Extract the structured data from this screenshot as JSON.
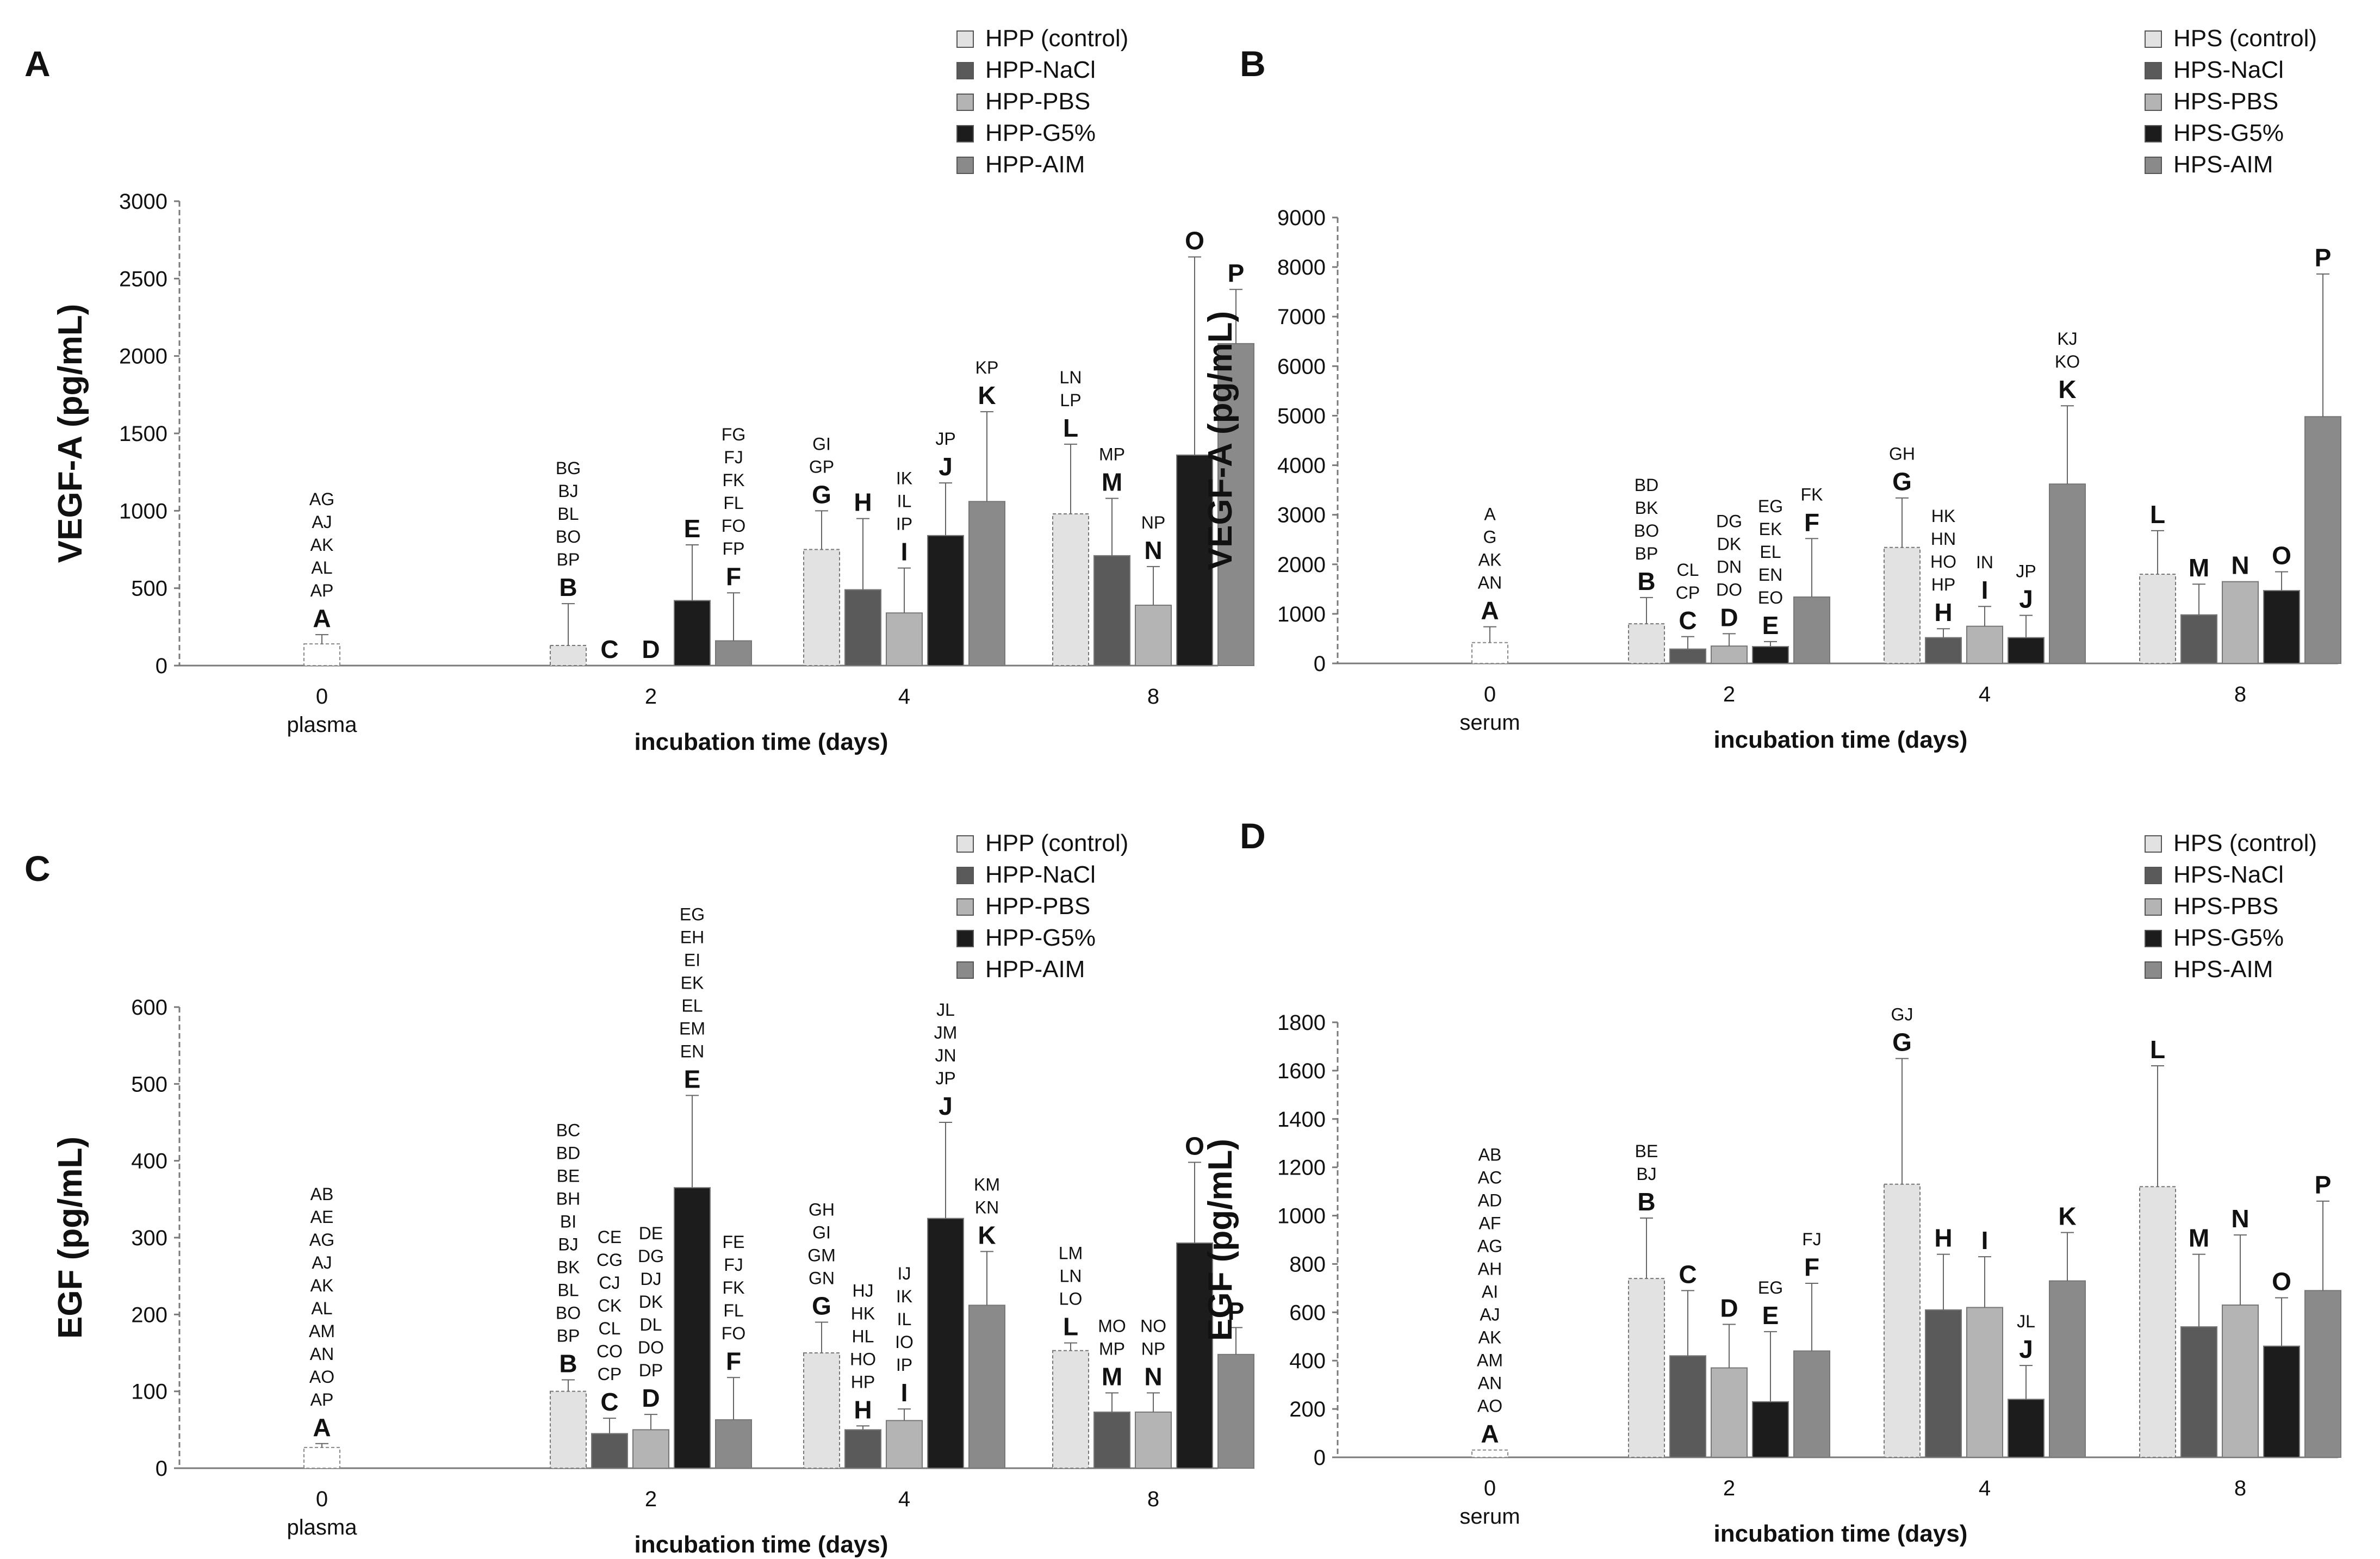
{
  "chart_data": [
    {
      "id": "A",
      "type": "bar",
      "panel_label": "A",
      "ylabel": "VEGF-A (pg/mL)",
      "xlabel": "incubation time (days)",
      "ylim": [
        0,
        3000
      ],
      "yticks": [
        "0",
        "500",
        "1000",
        "1500",
        "2000",
        "2500",
        "3000"
      ],
      "x_categories": [
        "0",
        "2",
        "4",
        "8"
      ],
      "x_sublabel": "plasma",
      "legend": [
        "HPP (control)",
        "HPP-NaCl",
        "HPP-PBS",
        "HPP-G5%",
        "HPP-AIM"
      ],
      "baseline": {
        "value": 140,
        "err": 60,
        "letter": "A",
        "sig": [
          "AG",
          "AJ",
          "AK",
          "AL",
          "AP"
        ]
      },
      "groups": [
        {
          "day": "2",
          "bars": [
            {
              "series": 0,
              "value": 130,
              "err": 270,
              "letter": "B",
              "sig": [
                "BG",
                "BJ",
                "BL",
                "BO",
                "BP"
              ]
            },
            {
              "series": 1,
              "value": 0,
              "err": 0,
              "letter": "C",
              "sig": []
            },
            {
              "series": 2,
              "value": 0,
              "err": 0,
              "letter": "D",
              "sig": []
            },
            {
              "series": 3,
              "value": 420,
              "err": 360,
              "letter": "E",
              "sig": []
            },
            {
              "series": 4,
              "value": 160,
              "err": 310,
              "letter": "F",
              "sig": [
                "FG",
                "FJ",
                "FK",
                "FL",
                "FO",
                "FP"
              ]
            }
          ]
        },
        {
          "day": "4",
          "bars": [
            {
              "series": 0,
              "value": 750,
              "err": 250,
              "letter": "G",
              "sig": [
                "GI",
                "GP"
              ]
            },
            {
              "series": 1,
              "value": 490,
              "err": 460,
              "letter": "H",
              "sig": []
            },
            {
              "series": 2,
              "value": 340,
              "err": 290,
              "letter": "I",
              "sig": [
                "IK",
                "IL",
                "IP"
              ]
            },
            {
              "series": 3,
              "value": 840,
              "err": 340,
              "letter": "J",
              "sig": [
                "JP"
              ]
            },
            {
              "series": 4,
              "value": 1060,
              "err": 580,
              "letter": "K",
              "sig": [
                "KP"
              ]
            }
          ]
        },
        {
          "day": "8",
          "bars": [
            {
              "series": 0,
              "value": 980,
              "err": 450,
              "letter": "L",
              "sig": [
                "LN",
                "LP"
              ]
            },
            {
              "series": 1,
              "value": 710,
              "err": 370,
              "letter": "M",
              "sig": [
                "MP"
              ]
            },
            {
              "series": 2,
              "value": 390,
              "err": 250,
              "letter": "N",
              "sig": [
                "NP"
              ]
            },
            {
              "series": 3,
              "value": 1360,
              "err": 1280,
              "letter": "O",
              "sig": []
            },
            {
              "series": 4,
              "value": 2080,
              "err": 350,
              "letter": "P",
              "sig": []
            }
          ]
        }
      ]
    },
    {
      "id": "B",
      "type": "bar",
      "panel_label": "B",
      "ylabel": "VEGF-A (pg/mL)",
      "xlabel": "incubation time (days)",
      "ylim": [
        0,
        9000
      ],
      "yticks": [
        "0",
        "1000",
        "2000",
        "3000",
        "4000",
        "5000",
        "6000",
        "7000",
        "8000",
        "9000"
      ],
      "x_categories": [
        "0",
        "2",
        "4",
        "8"
      ],
      "x_sublabel": "serum",
      "legend": [
        "HPS (control)",
        "HPS-NaCl",
        "HPS-PBS",
        "HPS-G5%",
        "HPS-AIM"
      ],
      "baseline": {
        "value": 420,
        "err": 320,
        "letter": "A",
        "sig": [
          "A",
          "G",
          "AK",
          "AN"
        ]
      },
      "groups": [
        {
          "day": "2",
          "bars": [
            {
              "series": 0,
              "value": 800,
              "err": 530,
              "letter": "B",
              "sig": [
                "BD",
                "BK",
                "BO",
                "BP"
              ]
            },
            {
              "series": 1,
              "value": 290,
              "err": 250,
              "letter": "C",
              "sig": [
                "CL",
                "CP"
              ]
            },
            {
              "series": 2,
              "value": 350,
              "err": 250,
              "letter": "D",
              "sig": [
                "DG",
                "DK",
                "DN",
                "DO"
              ]
            },
            {
              "series": 3,
              "value": 340,
              "err": 100,
              "letter": "E",
              "sig": [
                "EG",
                "EK",
                "EL",
                "EN",
                "EO"
              ]
            },
            {
              "series": 4,
              "value": 1340,
              "err": 1180,
              "letter": "F",
              "sig": [
                "FK"
              ]
            }
          ]
        },
        {
          "day": "4",
          "bars": [
            {
              "series": 0,
              "value": 2340,
              "err": 1000,
              "letter": "G",
              "sig": [
                "GH"
              ]
            },
            {
              "series": 1,
              "value": 520,
              "err": 180,
              "letter": "H",
              "sig": [
                "HK",
                "HN",
                "HO",
                "HP"
              ]
            },
            {
              "series": 2,
              "value": 750,
              "err": 400,
              "letter": "I",
              "sig": [
                "IN"
              ]
            },
            {
              "series": 3,
              "value": 520,
              "err": 450,
              "letter": "J",
              "sig": [
                "JP"
              ]
            },
            {
              "series": 4,
              "value": 3620,
              "err": 1580,
              "letter": "K",
              "sig": [
                "KJ",
                "KO"
              ]
            }
          ]
        },
        {
          "day": "8",
          "bars": [
            {
              "series": 0,
              "value": 1800,
              "err": 880,
              "letter": "L",
              "sig": []
            },
            {
              "series": 1,
              "value": 980,
              "err": 620,
              "letter": "M",
              "sig": []
            },
            {
              "series": 2,
              "value": 1650,
              "err": 0,
              "letter": "N",
              "sig": []
            },
            {
              "series": 3,
              "value": 1470,
              "err": 380,
              "letter": "O",
              "sig": []
            },
            {
              "series": 4,
              "value": 4980,
              "err": 2880,
              "letter": "P",
              "sig": []
            }
          ]
        }
      ]
    },
    {
      "id": "C",
      "type": "bar",
      "panel_label": "C",
      "ylabel": "EGF (pg/mL)",
      "xlabel": "incubation time (days)",
      "ylim": [
        0,
        600
      ],
      "yticks": [
        "0",
        "100",
        "200",
        "300",
        "400",
        "500",
        "600"
      ],
      "x_categories": [
        "0",
        "2",
        "4",
        "8"
      ],
      "x_sublabel": "plasma",
      "legend": [
        "HPP (control)",
        "HPP-NaCl",
        "HPP-PBS",
        "HPP-G5%",
        "HPP-AIM"
      ],
      "baseline": {
        "value": 27,
        "err": 5,
        "letter": "A",
        "sig": [
          "AB",
          "AE",
          "AG",
          "AJ",
          "AK",
          "AL",
          "AM",
          "AN",
          "AO",
          "AP"
        ]
      },
      "groups": [
        {
          "day": "2",
          "bars": [
            {
              "series": 0,
              "value": 100,
              "err": 15,
              "letter": "B",
              "sig": [
                "BC",
                "BD",
                "BE",
                "BH",
                "BI",
                "BJ",
                "BK",
                "BL",
                "BO",
                "BP"
              ]
            },
            {
              "series": 1,
              "value": 45,
              "err": 20,
              "letter": "C",
              "sig": [
                "CE",
                "CG",
                "CJ",
                "CK",
                "CL",
                "CO",
                "CP"
              ]
            },
            {
              "series": 2,
              "value": 50,
              "err": 20,
              "letter": "D",
              "sig": [
                "DE",
                "DG",
                "DJ",
                "DK",
                "DL",
                "DO",
                "DP"
              ]
            },
            {
              "series": 3,
              "value": 365,
              "err": 120,
              "letter": "E",
              "sig": [
                "EG",
                "EH",
                "EI",
                "EK",
                "EL",
                "EM",
                "EN"
              ]
            },
            {
              "series": 4,
              "value": 63,
              "err": 55,
              "letter": "F",
              "sig": [
                "FE",
                "FJ",
                "FK",
                "FL",
                "FO"
              ]
            }
          ]
        },
        {
          "day": "4",
          "bars": [
            {
              "series": 0,
              "value": 150,
              "err": 40,
              "letter": "G",
              "sig": [
                "GH",
                "GI",
                "GM",
                "GN"
              ]
            },
            {
              "series": 1,
              "value": 50,
              "err": 5,
              "letter": "H",
              "sig": [
                "HJ",
                "HK",
                "HL",
                "HO",
                "HP"
              ]
            },
            {
              "series": 2,
              "value": 62,
              "err": 15,
              "letter": "I",
              "sig": [
                "IJ",
                "IK",
                "IL",
                "IO",
                "IP"
              ]
            },
            {
              "series": 3,
              "value": 325,
              "err": 125,
              "letter": "J",
              "sig": [
                "JL",
                "JM",
                "JN",
                "JP"
              ]
            },
            {
              "series": 4,
              "value": 212,
              "err": 70,
              "letter": "K",
              "sig": [
                "KM",
                "KN"
              ]
            }
          ]
        },
        {
          "day": "8",
          "bars": [
            {
              "series": 0,
              "value": 153,
              "err": 10,
              "letter": "L",
              "sig": [
                "LM",
                "LN",
                "LO"
              ]
            },
            {
              "series": 1,
              "value": 73,
              "err": 25,
              "letter": "M",
              "sig": [
                "MO",
                "MP"
              ]
            },
            {
              "series": 2,
              "value": 73,
              "err": 25,
              "letter": "N",
              "sig": [
                "NO",
                "NP"
              ]
            },
            {
              "series": 3,
              "value": 293,
              "err": 105,
              "letter": "O",
              "sig": []
            },
            {
              "series": 4,
              "value": 148,
              "err": 35,
              "letter": "P",
              "sig": []
            }
          ]
        }
      ]
    },
    {
      "id": "D",
      "type": "bar",
      "panel_label": "D",
      "ylabel": "EGF (pg/mL)",
      "xlabel": "incubation time (days)",
      "ylim": [
        0,
        1800
      ],
      "yticks": [
        "0",
        "200",
        "400",
        "600",
        "800",
        "1000",
        "1200",
        "1400",
        "1600",
        "1800"
      ],
      "x_categories": [
        "0",
        "2",
        "4",
        "8"
      ],
      "x_sublabel": "serum",
      "legend": [
        "HPS (control)",
        "HPS-NaCl",
        "HPS-PBS",
        "HPS-G5%",
        "HPS-AIM"
      ],
      "baseline": {
        "value": 30,
        "err": 0,
        "letter": "A",
        "sig": [
          "AB",
          "AC",
          "AD",
          "AF",
          "AG",
          "AH",
          "AI",
          "AJ",
          "AK",
          "AM",
          "AN",
          "AO"
        ]
      },
      "groups": [
        {
          "day": "2",
          "bars": [
            {
              "series": 0,
              "value": 740,
              "err": 250,
              "letter": "B",
              "sig": [
                "BE",
                "BJ"
              ]
            },
            {
              "series": 1,
              "value": 420,
              "err": 270,
              "letter": "C",
              "sig": []
            },
            {
              "series": 2,
              "value": 370,
              "err": 180,
              "letter": "D",
              "sig": []
            },
            {
              "series": 3,
              "value": 230,
              "err": 290,
              "letter": "E",
              "sig": [
                "EG"
              ]
            },
            {
              "series": 4,
              "value": 440,
              "err": 280,
              "letter": "F",
              "sig": [
                "FJ"
              ]
            }
          ]
        },
        {
          "day": "4",
          "bars": [
            {
              "series": 0,
              "value": 1130,
              "err": 520,
              "letter": "G",
              "sig": [
                "GJ"
              ]
            },
            {
              "series": 1,
              "value": 610,
              "err": 230,
              "letter": "H",
              "sig": []
            },
            {
              "series": 2,
              "value": 620,
              "err": 210,
              "letter": "I",
              "sig": []
            },
            {
              "series": 3,
              "value": 240,
              "err": 140,
              "letter": "J",
              "sig": [
                "JL"
              ]
            },
            {
              "series": 4,
              "value": 730,
              "err": 200,
              "letter": "K",
              "sig": []
            }
          ]
        },
        {
          "day": "8",
          "bars": [
            {
              "series": 0,
              "value": 1120,
              "err": 500,
              "letter": "L",
              "sig": []
            },
            {
              "series": 1,
              "value": 540,
              "err": 300,
              "letter": "M",
              "sig": []
            },
            {
              "series": 2,
              "value": 630,
              "err": 290,
              "letter": "N",
              "sig": []
            },
            {
              "series": 3,
              "value": 460,
              "err": 200,
              "letter": "O",
              "sig": []
            },
            {
              "series": 4,
              "value": 690,
              "err": 370,
              "letter": "P",
              "sig": []
            }
          ]
        }
      ]
    }
  ],
  "series_colors": [
    "#e2e2e2",
    "#5a5a5a",
    "#b4b4b4",
    "#1c1c1c",
    "#8a8a8a"
  ],
  "baseline_color": "#ffffff",
  "axis_color": "#7a7a7a"
}
